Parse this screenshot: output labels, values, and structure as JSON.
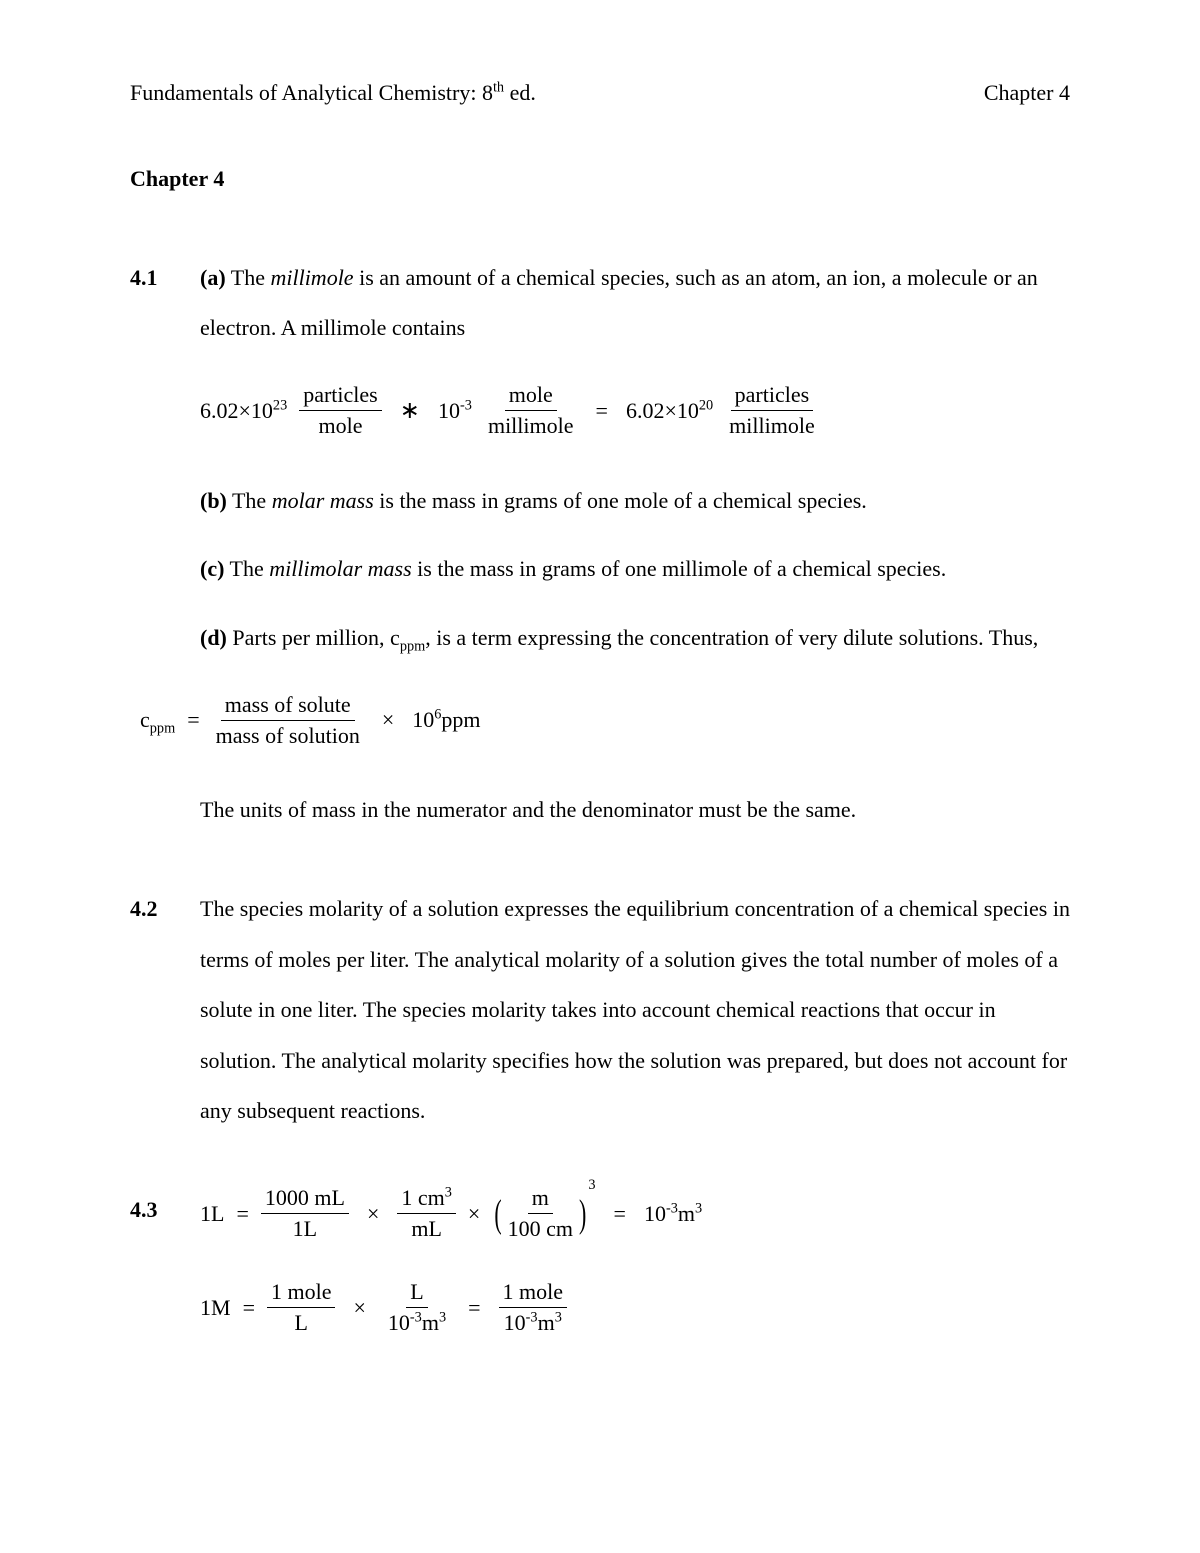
{
  "colors": {
    "text": "#000000",
    "background": "#ffffff"
  },
  "typography": {
    "family": "Times New Roman",
    "body_fontsize_pt": 16,
    "line_spacing": 2.3
  },
  "header": {
    "left_prefix": "Fundamentals of Analytical Chemistry: 8",
    "left_super": "th",
    "left_suffix": " ed.",
    "right": "Chapter 4"
  },
  "chapter_heading": "Chapter 4",
  "problems": {
    "p41": {
      "num": "4.1",
      "a_label": "(a)",
      "a_text_1": " The ",
      "a_term": "millimole",
      "a_text_2": " is an amount of a chemical species, such as an atom, an ion, a molecule or an electron.  A millimole contains",
      "a_eq": {
        "c1_base": "6.02",
        "c1_mul": "×10",
        "c1_exp": "23",
        "f1_num": "particles",
        "f1_den": "mole",
        "op1": "∗",
        "c2_base": "10",
        "c2_exp": "-3",
        "f2_num": "mole",
        "f2_den": "millimole",
        "eq": "=",
        "c3_base": "6.02",
        "c3_mul": "×10",
        "c3_exp": "20",
        "f3_num": "particles",
        "f3_den": "millimole"
      },
      "b_label": "(b)",
      "b_text_1": " The ",
      "b_term": "molar mass",
      "b_text_2": " is the mass in grams of one mole of a chemical species.",
      "c_label": "(c)",
      "c_text_1": " The ",
      "c_term": "millimolar mass",
      "c_text_2": " is the mass in grams of one millimole of a chemical species.",
      "d_label": "(d)",
      "d_text_1": " Parts per million, c",
      "d_sub": "ppm",
      "d_text_2": ", is a term expressing the concentration of very dilute solutions. Thus,",
      "d_eq": {
        "lhs_base": "c",
        "lhs_sub": "ppm",
        "eq": "=",
        "frac_num": "mass of solute",
        "frac_den": "mass of solution",
        "op": "×",
        "r_base": "10",
        "r_exp": "6",
        "r_unit": "ppm"
      },
      "d_tail": "The units of mass in the numerator and the denominator must be the same."
    },
    "p42": {
      "num": "4.2",
      "text": "The species molarity of a solution expresses the equilibrium concentration of a chemical species in terms of moles per liter.  The analytical molarity of a solution gives the total number of moles of a solute in one liter.  The species molarity takes into account chemical reactions that occur in solution.  The analytical molarity specifies how the solution was prepared, but does not account for any subsequent reactions."
    },
    "p43": {
      "num": "4.3",
      "eq1": {
        "lhs": "1L",
        "eq1": "=",
        "f1_num": "1000 mL",
        "f1_den": "1L",
        "op1": "×",
        "f2_num": "1 cm",
        "f2_num_exp": "3",
        "f2_den": "mL",
        "op2": "×",
        "paren_num": "m",
        "paren_den": "100 cm",
        "paren_exp": "3",
        "eq2": "=",
        "r_base": "10",
        "r_exp": "-3",
        "r_unit_base": "m",
        "r_unit_exp": "3"
      },
      "eq2": {
        "lhs": "1M",
        "eq1": "=",
        "f1_num": "1 mole",
        "f1_den": "L",
        "op1": "×",
        "f2_num": "L",
        "f2_den_base": "10",
        "f2_den_exp": "-3",
        "f2_den_unit_base": "m",
        "f2_den_unit_exp": "3",
        "eq2": "=",
        "f3_num": "1 mole",
        "f3_den_base": "10",
        "f3_den_exp": "-3",
        "f3_den_unit_base": "m",
        "f3_den_unit_exp": "3"
      }
    }
  }
}
